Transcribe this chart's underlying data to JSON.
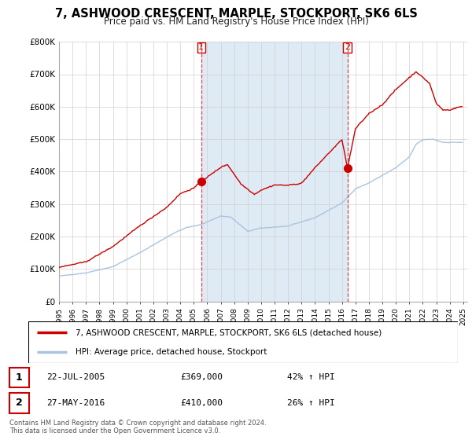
{
  "title": "7, ASHWOOD CRESCENT, MARPLE, STOCKPORT, SK6 6LS",
  "subtitle": "Price paid vs. HM Land Registry's House Price Index (HPI)",
  "legend_line1": "7, ASHWOOD CRESCENT, MARPLE, STOCKPORT, SK6 6LS (detached house)",
  "legend_line2": "HPI: Average price, detached house, Stockport",
  "transaction1_date": "22-JUL-2005",
  "transaction1_price": "£369,000",
  "transaction1_hpi": "42% ↑ HPI",
  "transaction1_year": 2005.55,
  "transaction1_value": 369000,
  "transaction2_date": "27-MAY-2016",
  "transaction2_price": "£410,000",
  "transaction2_hpi": "26% ↑ HPI",
  "transaction2_year": 2016.41,
  "transaction2_value": 410000,
  "footer": "Contains HM Land Registry data © Crown copyright and database right 2024.\nThis data is licensed under the Open Government Licence v3.0.",
  "hpi_color": "#aac4e0",
  "price_color": "#cc0000",
  "shade_color": "#deeaf4",
  "marker_color": "#cc0000",
  "ylim": [
    0,
    800000
  ],
  "yticks": [
    0,
    100000,
    200000,
    300000,
    400000,
    500000,
    600000,
    700000,
    800000
  ],
  "ytick_labels": [
    "£0",
    "£100K",
    "£200K",
    "£300K",
    "£400K",
    "£500K",
    "£600K",
    "£700K",
    "£800K"
  ],
  "xlim_start": 1995.0,
  "xlim_end": 2025.3,
  "xticks": [
    1995,
    1996,
    1997,
    1998,
    1999,
    2000,
    2001,
    2002,
    2003,
    2004,
    2005,
    2006,
    2007,
    2008,
    2009,
    2010,
    2011,
    2012,
    2013,
    2014,
    2015,
    2016,
    2017,
    2018,
    2019,
    2020,
    2021,
    2022,
    2023,
    2024,
    2025
  ],
  "bg_color": "#f0f4f8"
}
